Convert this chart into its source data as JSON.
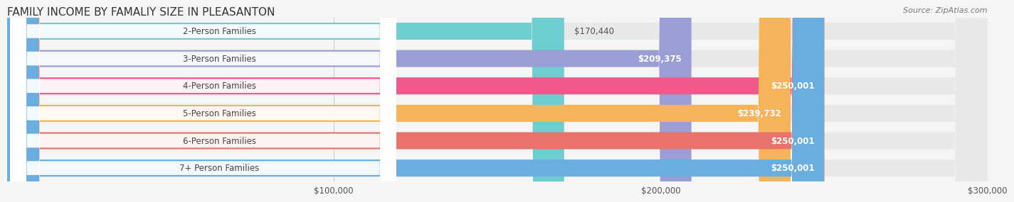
{
  "title": "FAMILY INCOME BY FAMALIY SIZE IN PLEASANTON",
  "source": "Source: ZipAtlas.com",
  "categories": [
    "2-Person Families",
    "3-Person Families",
    "4-Person Families",
    "5-Person Families",
    "6-Person Families",
    "7+ Person Families"
  ],
  "values": [
    170440,
    209375,
    250001,
    239732,
    250001,
    250001
  ],
  "bar_colors": [
    "#6dcdd0",
    "#9b9ed4",
    "#f0598a",
    "#f5b45a",
    "#e8736a",
    "#6aaee0"
  ],
  "label_colors": [
    "#333333",
    "#333333",
    "#ffffff",
    "#ffffff",
    "#ffffff",
    "#ffffff"
  ],
  "value_labels": [
    "$170,440",
    "$209,375",
    "$250,001",
    "$239,732",
    "$250,001",
    "$250,001"
  ],
  "xlim": [
    0,
    300000
  ],
  "xticks": [
    0,
    100000,
    200000,
    300000
  ],
  "xtick_labels": [
    "",
    "$100,000",
    "$200,000",
    "$300,000"
  ],
  "background_color": "#f5f5f5",
  "bar_bg_color": "#e8e8e8",
  "title_fontsize": 11,
  "label_fontsize": 8.5,
  "value_fontsize": 8.5,
  "source_fontsize": 8
}
